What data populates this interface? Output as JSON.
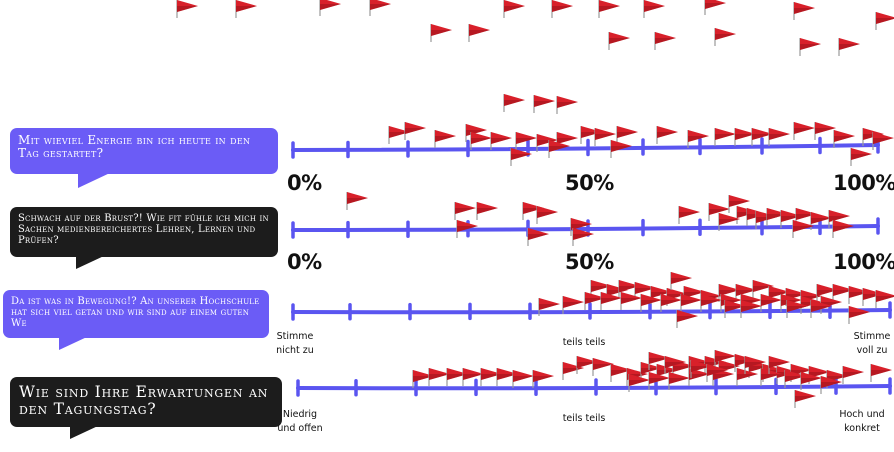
{
  "scales": [
    {
      "question": "Mit wieviel Energie bin ich heute in den Tag gestartet?",
      "labels": [
        "0%",
        "50%",
        "100%"
      ]
    },
    {
      "question": "Schwach auf der Brust?!  Wie fit fühle ich mich in Sachen medienbereichertes Lehren, Lernen und Prüfen?",
      "labels": [
        "0%",
        "50%",
        "100%"
      ]
    },
    {
      "question": "Da ist was in Bewegung!? An unserer Hochschule hat sich viel getan und wir sind auf einem guten We",
      "labels": [
        "Stimme nicht zu",
        "teils teils",
        "Stimme voll zu"
      ]
    },
    {
      "question": "Wie sind Ihre Erwartungen an den Tagungstag?",
      "labels": [
        "Niedrig und offen",
        "teils teils",
        "Hoch und konkret"
      ]
    }
  ],
  "colors": {
    "line": "#5a55f0",
    "flag": "#d8202a",
    "flag_dark": "#8e1016",
    "pole": "#9a9a9a",
    "bubble_blue": "#6b5cf6",
    "bubble_dark": "#1c1c1c"
  },
  "flag_counts": {
    "unplaced_top": 20,
    "scale_1": 34,
    "scale_2": 30,
    "scale_3": 42,
    "scale_4": 46
  }
}
